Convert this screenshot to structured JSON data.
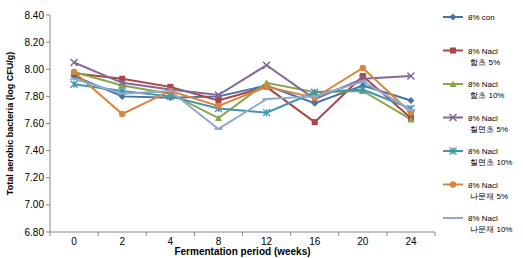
{
  "chart_data": {
    "type": "line",
    "x_label": "Fermentation period (weeks)",
    "y_label": "Total aerobic bacteria (log CFU/g)",
    "categories": [
      "0",
      "2",
      "4",
      "8",
      "12",
      "16",
      "20",
      "24"
    ],
    "ylim": [
      6.8,
      8.4
    ],
    "yticks": [
      {
        "value": 6.8,
        "label": "6.80"
      },
      {
        "value": 7.0,
        "label": "7.00"
      },
      {
        "value": 7.2,
        "label": "7.20"
      },
      {
        "value": 7.4,
        "label": "7.40"
      },
      {
        "value": 7.6,
        "label": "7.60"
      },
      {
        "value": 7.8,
        "label": "7.80"
      },
      {
        "value": 8.0,
        "label": "8.00"
      },
      {
        "value": 8.2,
        "label": "8.20"
      },
      {
        "value": 8.4,
        "label": "8.40"
      }
    ],
    "grid": false,
    "legend": "right",
    "series": [
      {
        "name": "8% con",
        "color": "#4572a7",
        "marker": "diamond",
        "values": [
          7.95,
          7.8,
          7.79,
          7.8,
          7.88,
          7.75,
          7.88,
          7.77
        ]
      },
      {
        "name": "8% Nacl 함초 5%",
        "color": "#aa4643",
        "marker": "square",
        "values": [
          7.97,
          7.93,
          7.87,
          7.77,
          7.87,
          7.61,
          7.95,
          7.64
        ]
      },
      {
        "name": "8% Nacl 함초 10%",
        "color": "#89a54e",
        "marker": "triangle",
        "values": [
          7.98,
          7.88,
          7.82,
          7.64,
          7.9,
          7.83,
          7.84,
          7.63
        ]
      },
      {
        "name": "8% Nacl 칠면초 5%",
        "color": "#80699b",
        "marker": "x",
        "values": [
          8.05,
          7.9,
          7.85,
          7.81,
          8.03,
          7.78,
          7.93,
          7.95
        ]
      },
      {
        "name": "8% Nacl 칠면초 10%",
        "color": "#3d96ae",
        "marker": "star",
        "values": [
          7.89,
          7.84,
          7.8,
          7.71,
          7.68,
          7.83,
          7.85,
          7.71
        ]
      },
      {
        "name": "8% Nacl 나문재 5%",
        "color": "#db843d",
        "marker": "circle",
        "values": [
          7.98,
          7.67,
          7.84,
          7.73,
          7.87,
          7.79,
          8.01,
          7.68
        ]
      },
      {
        "name": "8% Nacl 나문재 10%",
        "color": "#92a8cd",
        "marker": "dash",
        "values": [
          7.93,
          7.82,
          7.84,
          7.56,
          7.78,
          7.8,
          7.91,
          7.7
        ]
      }
    ]
  }
}
